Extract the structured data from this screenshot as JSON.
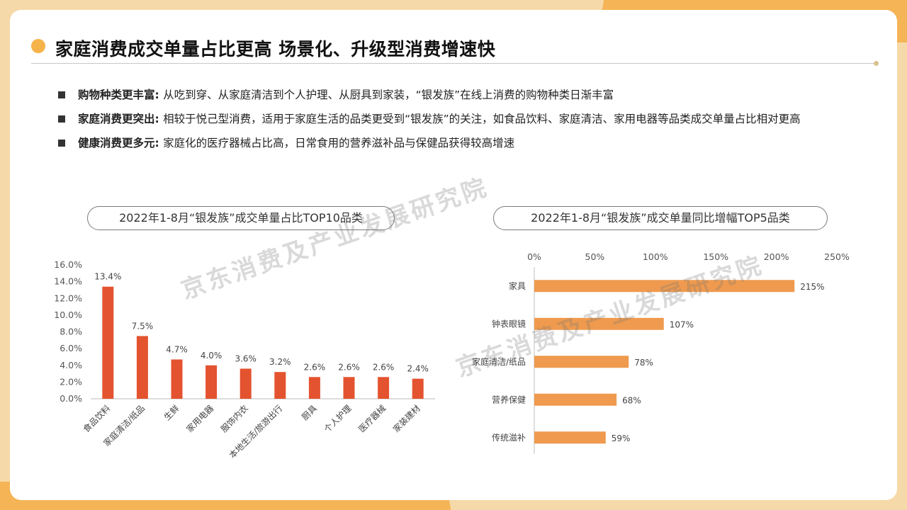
{
  "header": {
    "title": "家庭消费成交单量占比更高  场景化、升级型消费增速快"
  },
  "bullets": [
    {
      "lead": "购物种类更丰富: ",
      "text": "从吃到穿、从家庭清洁到个人护理、从厨具到家装，“银发族”在线上消费的购物种类日渐丰富"
    },
    {
      "lead": "家庭消费更突出: ",
      "text": "相较于悦己型消费，适用于家庭生活的品类更受到“银发族”的关注，如食品饮料、家庭清洁、家用电器等品类成交单量占比相对更高"
    },
    {
      "lead": "健康消费更多元: ",
      "text": "家庭化的医疗器械占比高，日常食用的营养滋补品与保健品获得较高增速"
    }
  ],
  "watermark": "京东消费及产业发展研究院",
  "chart_data": [
    {
      "type": "bar",
      "title": "2022年1-8月“银发族”成交单量占比TOP10品类",
      "categories": [
        "食品饮料",
        "家庭清洁/纸品",
        "生鲜",
        "家用电器",
        "服饰内衣",
        "本地生活/旅游出行",
        "厨具",
        "个人护理",
        "医疗器械",
        "家装建材"
      ],
      "values": [
        13.4,
        7.5,
        4.7,
        4.0,
        3.6,
        3.2,
        2.6,
        2.6,
        2.6,
        2.4
      ],
      "value_labels": [
        "13.4%",
        "7.5%",
        "4.7%",
        "4.0%",
        "3.6%",
        "3.2%",
        "2.6%",
        "2.6%",
        "2.6%",
        "2.4%"
      ],
      "ylim": [
        0,
        16
      ],
      "ticks": [
        "0.0%",
        "2.0%",
        "4.0%",
        "6.0%",
        "8.0%",
        "10.0%",
        "12.0%",
        "14.0%",
        "16.0%"
      ],
      "color": "#e4532f"
    },
    {
      "type": "bar",
      "orientation": "horizontal",
      "title": "2022年1-8月“银发族”成交单量同比增幅TOP5品类",
      "categories": [
        "家具",
        "钟表眼镜",
        "家庭清洁/纸品",
        "营养保健",
        "传统滋补"
      ],
      "values": [
        215,
        107,
        78,
        68,
        59
      ],
      "value_labels": [
        "215%",
        "107%",
        "78%",
        "68%",
        "59%"
      ],
      "xlim": [
        0,
        250
      ],
      "ticks": [
        "0%",
        "50%",
        "100%",
        "150%",
        "200%",
        "250%"
      ],
      "color": "#ef9a4e"
    }
  ]
}
